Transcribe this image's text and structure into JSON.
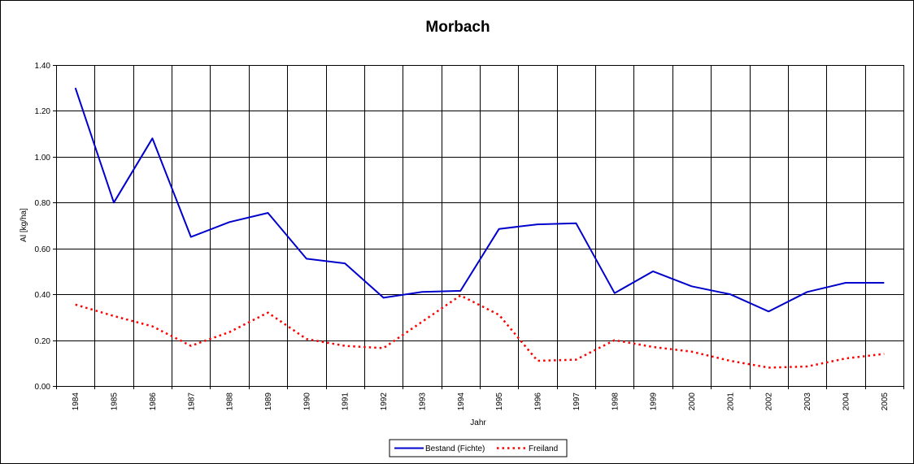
{
  "chart_data": {
    "type": "line",
    "title": "Morbach",
    "xlabel": "Jahr",
    "ylabel": "Al [kg/ha]",
    "ylim": [
      0,
      1.4
    ],
    "ytick_step": 0.2,
    "ytick_labels": [
      "0.00",
      "0.20",
      "0.40",
      "0.60",
      "0.80",
      "1.00",
      "1.20",
      "1.40"
    ],
    "grid": true,
    "legend_position": "bottom",
    "categories": [
      "1984",
      "1985",
      "1986",
      "1987",
      "1988",
      "1989",
      "1990",
      "1991",
      "1992",
      "1993",
      "1994",
      "1995",
      "1996",
      "1997",
      "1998",
      "1999",
      "2000",
      "2001",
      "2002",
      "2003",
      "2004",
      "2005"
    ],
    "series": [
      {
        "name": "Bestand (Fichte)",
        "color": "#0000cc",
        "style": "solid",
        "values": [
          1.3,
          0.8,
          1.08,
          0.65,
          0.715,
          0.755,
          0.555,
          0.535,
          0.385,
          0.41,
          0.415,
          0.685,
          0.705,
          0.71,
          0.405,
          0.5,
          0.435,
          0.4,
          0.325,
          0.41,
          0.45,
          0.45
        ]
      },
      {
        "name": "Freiland",
        "color": "#ff0000",
        "style": "dotted",
        "values": [
          0.355,
          0.305,
          0.26,
          0.175,
          0.235,
          0.32,
          0.205,
          0.175,
          0.165,
          0.28,
          0.395,
          0.31,
          0.11,
          0.115,
          0.2,
          0.17,
          0.15,
          0.11,
          0.08,
          0.085,
          0.12,
          0.14
        ]
      }
    ]
  }
}
